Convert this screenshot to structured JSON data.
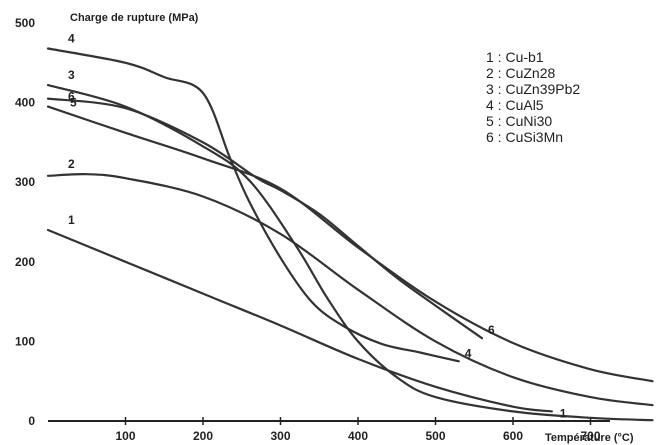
{
  "chart_data": {
    "type": "line",
    "ylabel": "Charge de rupture (MPa)",
    "xlabel": "Température (°C)",
    "xlim": [
      0,
      800
    ],
    "ylim": [
      0,
      500
    ],
    "x_ticks": [
      100,
      200,
      300,
      400,
      500,
      600,
      700
    ],
    "y_ticks": [
      0,
      100,
      200,
      300,
      400,
      500
    ],
    "grid": false,
    "legend_position": "top-right",
    "legend": [
      "1 : Cu-b1",
      "2 : CuZn28",
      "3 : CuZn39Pb2",
      "4 : CuAl5",
      "5 : CuNi30",
      "6 : CuSi3Mn"
    ],
    "series": [
      {
        "start_label": "1",
        "end_label": "1",
        "points": [
          [
            0,
            240
          ],
          [
            100,
            200
          ],
          [
            200,
            160
          ],
          [
            300,
            120
          ],
          [
            400,
            78
          ],
          [
            500,
            43
          ],
          [
            600,
            18
          ],
          [
            650,
            12
          ]
        ]
      },
      {
        "start_label": "2",
        "end_label": "2",
        "points": [
          [
            0,
            308
          ],
          [
            50,
            310
          ],
          [
            100,
            305
          ],
          [
            200,
            282
          ],
          [
            300,
            235
          ],
          [
            400,
            165
          ],
          [
            500,
            100
          ],
          [
            600,
            55
          ],
          [
            700,
            30
          ],
          [
            780,
            20
          ]
        ]
      },
      {
        "start_label": "3",
        "end_label": "3",
        "points": [
          [
            0,
            422
          ],
          [
            100,
            395
          ],
          [
            200,
            345
          ],
          [
            260,
            302
          ],
          [
            320,
            220
          ],
          [
            360,
            155
          ],
          [
            400,
            100
          ],
          [
            450,
            55
          ],
          [
            500,
            30
          ],
          [
            600,
            12
          ],
          [
            700,
            4
          ],
          [
            780,
            1
          ]
        ]
      },
      {
        "start_label": "4",
        "end_label": "4",
        "points": [
          [
            0,
            468
          ],
          [
            100,
            450
          ],
          [
            150,
            432
          ],
          [
            200,
            412
          ],
          [
            235,
            330
          ],
          [
            260,
            275
          ],
          [
            300,
            205
          ],
          [
            340,
            150
          ],
          [
            380,
            120
          ],
          [
            430,
            97
          ],
          [
            480,
            86
          ],
          [
            530,
            75
          ]
        ]
      },
      {
        "start_label": "5",
        "end_label": "5",
        "points": [
          [
            0,
            395
          ],
          [
            100,
            362
          ],
          [
            200,
            330
          ],
          [
            300,
            292
          ],
          [
            400,
            218
          ],
          [
            500,
            150
          ],
          [
            600,
            98
          ],
          [
            700,
            65
          ],
          [
            780,
            50
          ]
        ]
      },
      {
        "start_label": "6",
        "end_label": "6",
        "points": [
          [
            0,
            405
          ],
          [
            100,
            393
          ],
          [
            200,
            350
          ],
          [
            270,
            305
          ],
          [
            300,
            290
          ],
          [
            350,
            260
          ],
          [
            400,
            220
          ],
          [
            450,
            180
          ],
          [
            500,
            145
          ],
          [
            560,
            104
          ]
        ]
      }
    ]
  }
}
